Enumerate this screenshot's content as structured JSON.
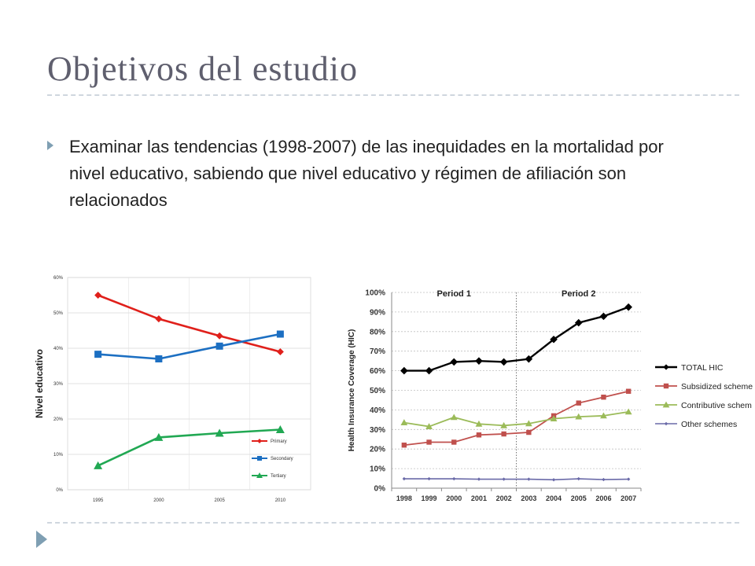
{
  "slide": {
    "title": "Objetivos del estudio",
    "bullet": "Examinar las tendencias (1998-2007) de las inequidades en la mortalidad por nivel educativo, sabiendo que nivel educativo y régimen de afiliación son relacionados"
  },
  "chart_data": [
    {
      "type": "line",
      "ylabel": "Nivel educativo",
      "x": [
        "1995",
        "2000",
        "2005",
        "2010"
      ],
      "ylim": [
        0,
        60
      ],
      "y_ticks": [
        "0%",
        "10%",
        "20%",
        "30%",
        "40%",
        "50%",
        "60%"
      ],
      "grid": true,
      "legend_position": "inside-bottom-right",
      "series": [
        {
          "name": "Primary",
          "values": [
            55,
            48.3,
            43.5,
            39
          ],
          "color": "#e0201b",
          "marker": "diamond"
        },
        {
          "name": "Secondary",
          "values": [
            38.3,
            37,
            40.6,
            44
          ],
          "color": "#1c6fc2",
          "marker": "square"
        },
        {
          "name": "Tertiary",
          "values": [
            6.8,
            14.8,
            16,
            17
          ],
          "color": "#21a853",
          "marker": "triangle"
        }
      ]
    },
    {
      "type": "line",
      "ylabel": "Health Insurance Coverage (HIC)",
      "x": [
        "1998",
        "1999",
        "2000",
        "2001",
        "2002",
        "2003",
        "2004",
        "2005",
        "2006",
        "2007"
      ],
      "ylim": [
        0,
        100
      ],
      "y_ticks": [
        "0%",
        "10%",
        "20%",
        "30%",
        "40%",
        "50%",
        "60%",
        "70%",
        "80%",
        "90%",
        "100%"
      ],
      "grid": true,
      "period_labels": [
        "Period 1",
        "Period 2"
      ],
      "legend_position": "right",
      "series": [
        {
          "name": "TOTAL HIC",
          "values": [
            60,
            60,
            64.5,
            65,
            64.5,
            66,
            76,
            84.5,
            87.8,
            92.5
          ],
          "color": "#000000",
          "marker": "diamond"
        },
        {
          "name": "Subsidized scheme",
          "values": [
            22,
            23.5,
            23.5,
            27.2,
            27.7,
            28.5,
            37,
            43.5,
            46.5,
            49.5
          ],
          "color": "#c0504d",
          "marker": "square"
        },
        {
          "name": "Contributive schem",
          "values": [
            33.5,
            31.5,
            36.2,
            32.8,
            32,
            33,
            35.5,
            36.5,
            37,
            39
          ],
          "color": "#9bbb59",
          "marker": "triangle"
        },
        {
          "name": "Other schemes",
          "values": [
            4.8,
            4.8,
            4.8,
            4.6,
            4.6,
            4.6,
            4.3,
            4.8,
            4.4,
            4.6
          ],
          "color": "#6a6aa8",
          "marker": "diamond"
        }
      ]
    }
  ]
}
